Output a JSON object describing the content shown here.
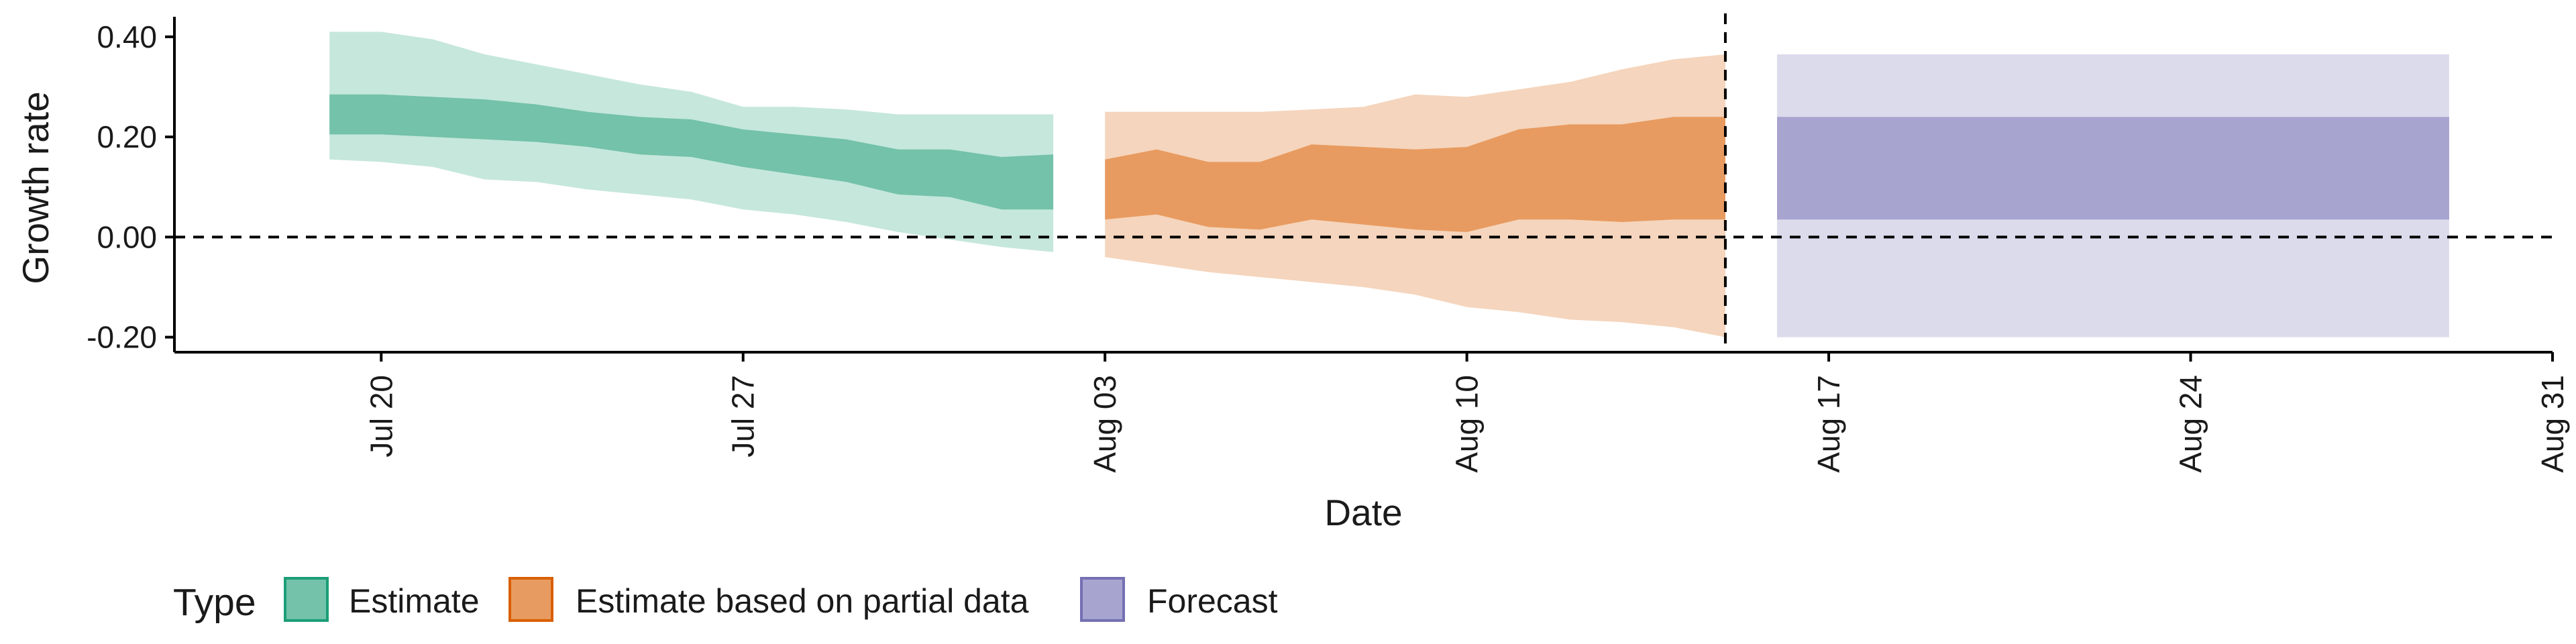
{
  "chart_data": {
    "type": "area",
    "title": "",
    "xlabel": "Date",
    "ylabel": "Growth rate",
    "x_range": [
      "2020-07-16",
      "2020-08-31"
    ],
    "ylim": [
      -0.23,
      0.44
    ],
    "y_ticks": [
      -0.2,
      0.0,
      0.2,
      0.4
    ],
    "y_tick_labels": [
      "-0.20",
      "0.00",
      "0.20",
      "0.40"
    ],
    "x_ticks": [
      "2020-07-20",
      "2020-07-27",
      "2020-08-03",
      "2020-08-10",
      "2020-08-17",
      "2020-08-24",
      "2020-08-31"
    ],
    "x_tick_labels": [
      "Jul 20",
      "Jul 27",
      "Aug 03",
      "Aug 10",
      "Aug 17",
      "Aug 24",
      "Aug 31"
    ],
    "grid": false,
    "reference_hline_y": 0,
    "reference_vline_x": "2020-08-15",
    "legend": {
      "title": "Type",
      "position": "bottom-left",
      "entries": [
        {
          "label": "Estimate",
          "fill": "#73c2a9",
          "border": "#1b9e77"
        },
        {
          "label": "Estimate based on partial data",
          "fill": "#e89b60",
          "border": "#d95f02"
        },
        {
          "label": "Forecast",
          "fill": "#a8a4d0",
          "border": "#7570b3"
        }
      ]
    },
    "series": [
      {
        "name": "Estimate",
        "color_inner": "#73c2a9",
        "color_outer": "#c6e7dc",
        "x": [
          "2020-07-19",
          "2020-07-20",
          "2020-07-21",
          "2020-07-22",
          "2020-07-23",
          "2020-07-24",
          "2020-07-25",
          "2020-07-26",
          "2020-07-27",
          "2020-07-28",
          "2020-07-29",
          "2020-07-30",
          "2020-07-31",
          "2020-08-01",
          "2020-08-02"
        ],
        "outer_lower": [
          0.155,
          0.15,
          0.14,
          0.115,
          0.11,
          0.095,
          0.085,
          0.075,
          0.055,
          0.045,
          0.03,
          0.01,
          -0.005,
          -0.02,
          -0.03
        ],
        "inner_lower": [
          0.205,
          0.205,
          0.2,
          0.195,
          0.19,
          0.18,
          0.165,
          0.16,
          0.14,
          0.125,
          0.11,
          0.085,
          0.08,
          0.055,
          0.055
        ],
        "inner_upper": [
          0.285,
          0.285,
          0.28,
          0.275,
          0.265,
          0.25,
          0.24,
          0.235,
          0.215,
          0.205,
          0.195,
          0.175,
          0.175,
          0.16,
          0.165
        ],
        "outer_upper": [
          0.41,
          0.41,
          0.395,
          0.365,
          0.345,
          0.325,
          0.305,
          0.29,
          0.26,
          0.26,
          0.255,
          0.245,
          0.245,
          0.245,
          0.245
        ]
      },
      {
        "name": "Estimate based on partial data",
        "color_inner": "#e89b60",
        "color_outer": "#f5d5bd",
        "x": [
          "2020-08-03",
          "2020-08-04",
          "2020-08-05",
          "2020-08-06",
          "2020-08-07",
          "2020-08-08",
          "2020-08-09",
          "2020-08-10",
          "2020-08-11",
          "2020-08-12",
          "2020-08-13",
          "2020-08-14",
          "2020-08-15"
        ],
        "outer_lower": [
          -0.04,
          -0.055,
          -0.07,
          -0.08,
          -0.09,
          -0.1,
          -0.115,
          -0.14,
          -0.15,
          -0.165,
          -0.17,
          -0.18,
          -0.2
        ],
        "inner_lower": [
          0.035,
          0.045,
          0.02,
          0.015,
          0.035,
          0.025,
          0.015,
          0.01,
          0.035,
          0.035,
          0.03,
          0.035,
          0.035
        ],
        "inner_upper": [
          0.155,
          0.175,
          0.15,
          0.15,
          0.185,
          0.18,
          0.175,
          0.18,
          0.215,
          0.225,
          0.225,
          0.24,
          0.24
        ],
        "outer_upper": [
          0.25,
          0.25,
          0.25,
          0.25,
          0.255,
          0.26,
          0.285,
          0.28,
          0.295,
          0.31,
          0.335,
          0.355,
          0.365
        ]
      },
      {
        "name": "Forecast",
        "color_inner": "#a8a4d0",
        "color_outer": "#dcdbec",
        "x": [
          "2020-08-16",
          "2020-08-29"
        ],
        "outer_lower": [
          -0.2,
          -0.2
        ],
        "inner_lower": [
          0.035,
          0.035
        ],
        "inner_upper": [
          0.24,
          0.24
        ],
        "outer_upper": [
          0.365,
          0.365
        ]
      }
    ]
  }
}
